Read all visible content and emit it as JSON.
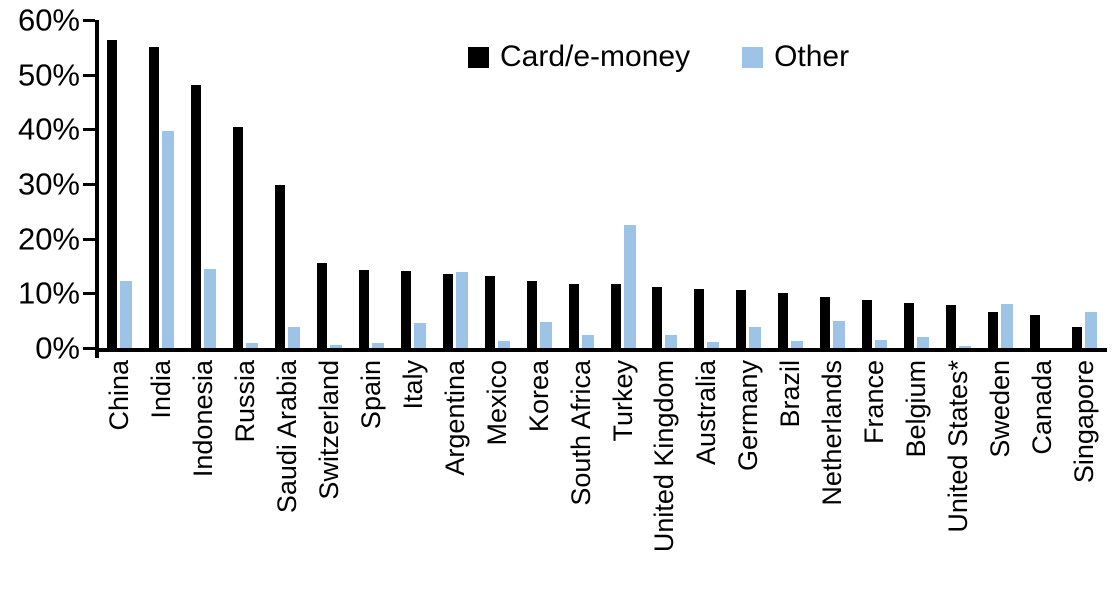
{
  "chart_data": {
    "type": "bar",
    "title": "",
    "xlabel": "",
    "ylabel": "",
    "ylim": [
      0,
      60
    ],
    "grid": false,
    "legend_position": "top-center",
    "y_ticks": [
      {
        "value": 0,
        "label": "0%"
      },
      {
        "value": 10,
        "label": "10%"
      },
      {
        "value": 20,
        "label": "20%"
      },
      {
        "value": 30,
        "label": "30%"
      },
      {
        "value": 40,
        "label": "40%"
      },
      {
        "value": 50,
        "label": "50%"
      },
      {
        "value": 60,
        "label": "60%"
      }
    ],
    "categories": [
      "China",
      "India",
      "Indonesia",
      "Russia",
      "Saudi Arabia",
      "Switzerland",
      "Spain",
      "Italy",
      "Argentina",
      "Mexico",
      "Korea",
      "South Africa",
      "Turkey",
      "United Kingdom",
      "Australia",
      "Germany",
      "Brazil",
      "Netherlands",
      "France",
      "Belgium",
      "United States*",
      "Sweden",
      "Canada",
      "Singapore"
    ],
    "series": [
      {
        "name": "Card/e-money",
        "color": "#000000",
        "values": [
          56.3,
          55.0,
          48.2,
          40.5,
          29.9,
          15.6,
          14.2,
          14.1,
          13.5,
          13.1,
          12.3,
          11.8,
          11.7,
          11.1,
          10.8,
          10.6,
          10.0,
          9.3,
          8.7,
          8.3,
          7.9,
          6.5,
          6.0,
          3.9
        ]
      },
      {
        "name": "Other",
        "color": "#9DC3E6",
        "values": [
          12.3,
          39.7,
          14.5,
          0.9,
          3.8,
          0.6,
          0.9,
          4.6,
          13.9,
          1.3,
          4.7,
          2.4,
          22.5,
          2.3,
          1.1,
          3.9,
          1.2,
          4.9,
          1.5,
          2.1,
          0.3,
          8.1,
          0.0,
          6.6
        ]
      }
    ]
  }
}
